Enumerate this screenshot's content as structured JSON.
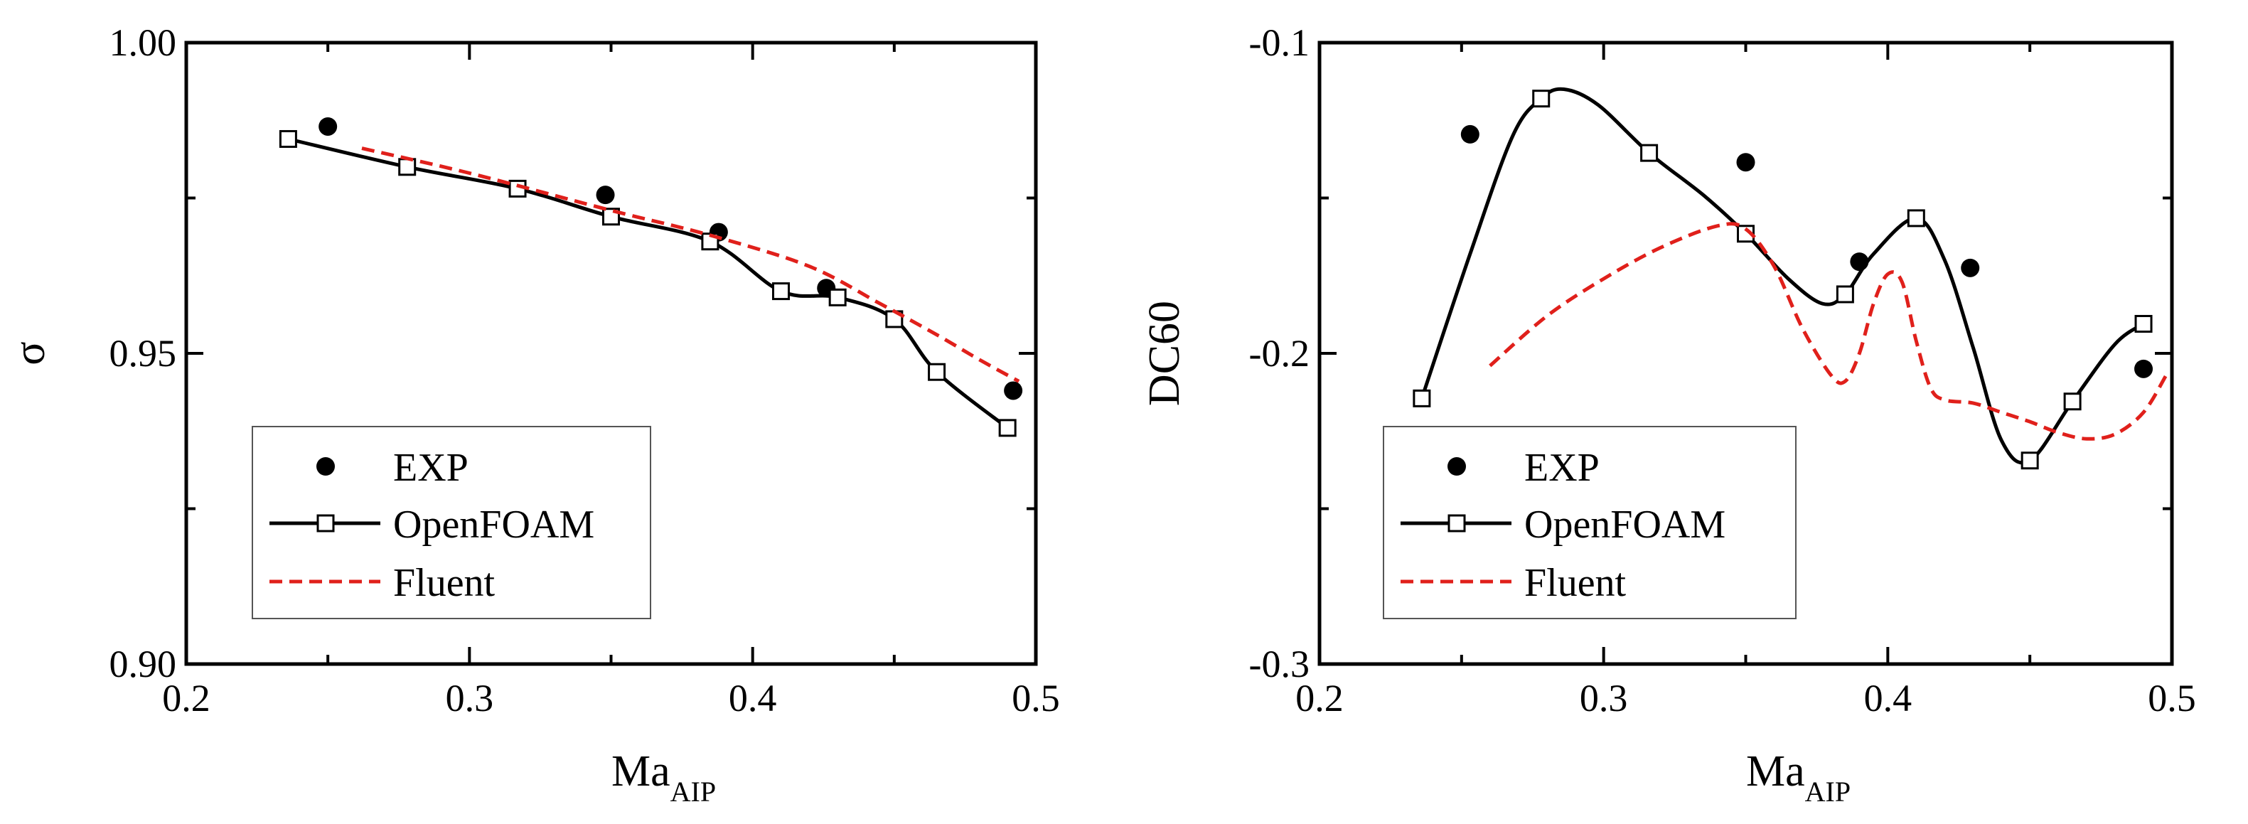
{
  "colors": {
    "exp": "#000000",
    "openfoam": "#000000",
    "fluent": "#e0201b",
    "axis": "#000000"
  },
  "chart_data": [
    {
      "type": "line",
      "title": "",
      "xlabel": "Ma",
      "xlabel_sub": "AIP",
      "ylabel": "σ",
      "xlim": [
        0.2,
        0.5
      ],
      "ylim": [
        0.9,
        1.0
      ],
      "xticks": [
        "0.2",
        "0.3",
        "0.4",
        "0.5"
      ],
      "yticks": [
        "0.90",
        "0.95",
        "1.00"
      ],
      "xtick_values": [
        0.2,
        0.3,
        0.4,
        0.5
      ],
      "ytick_values": [
        0.9,
        0.95,
        1.0
      ],
      "legend_position": "bottom-left",
      "series": [
        {
          "name": "EXP",
          "style": "marker",
          "x": [
            0.25,
            0.348,
            0.388,
            0.426,
            0.492
          ],
          "y": [
            0.9865,
            0.9755,
            0.9695,
            0.9605,
            0.944
          ]
        },
        {
          "name": "OpenFOAM",
          "style": "line-square",
          "x": [
            0.236,
            0.278,
            0.317,
            0.35,
            0.385,
            0.41,
            0.43,
            0.45,
            0.465,
            0.49
          ],
          "y": [
            0.9845,
            0.98,
            0.9765,
            0.972,
            0.968,
            0.96,
            0.959,
            0.9555,
            0.947,
            0.938
          ]
        },
        {
          "name": "Fluent",
          "style": "dashed",
          "x": [
            0.262,
            0.3,
            0.35,
            0.385,
            0.42,
            0.445,
            0.465,
            0.48,
            0.494
          ],
          "y": [
            0.983,
            0.979,
            0.973,
            0.969,
            0.964,
            0.958,
            0.953,
            0.949,
            0.9455
          ]
        }
      ]
    },
    {
      "type": "line",
      "title": "",
      "xlabel": "Ma",
      "xlabel_sub": "AIP",
      "ylabel": "DC60",
      "xlim": [
        0.2,
        0.5
      ],
      "ylim": [
        -0.3,
        -0.1
      ],
      "xticks": [
        "0.2",
        "0.3",
        "0.4",
        "0.5"
      ],
      "yticks": [
        "-0.3",
        "-0.2",
        "-0.1"
      ],
      "xtick_values": [
        0.2,
        0.3,
        0.4,
        0.5
      ],
      "ytick_values": [
        -0.3,
        -0.2,
        -0.1
      ],
      "legend_position": "bottom-left",
      "series": [
        {
          "name": "EXP",
          "style": "marker",
          "x": [
            0.253,
            0.35,
            0.39,
            0.429,
            0.49
          ],
          "y": [
            -0.1295,
            -0.1385,
            -0.1705,
            -0.1725,
            -0.205
          ]
        },
        {
          "name": "OpenFOAM",
          "style": "line-square",
          "x": [
            0.236,
            0.253,
            0.268,
            0.278,
            0.286,
            0.298,
            0.316,
            0.335,
            0.35,
            0.365,
            0.377,
            0.385,
            0.395,
            0.41,
            0.42,
            0.43,
            0.44,
            0.45,
            0.465,
            0.48,
            0.49
          ],
          "y": [
            -0.2145,
            -0.168,
            -0.13,
            -0.118,
            -0.115,
            -0.12,
            -0.1355,
            -0.149,
            -0.1615,
            -0.176,
            -0.184,
            -0.181,
            -0.168,
            -0.1565,
            -0.17,
            -0.198,
            -0.228,
            -0.2345,
            -0.2155,
            -0.197,
            -0.1905
          ]
        },
        {
          "name": "Fluent",
          "style": "dashed",
          "x": [
            0.26,
            0.28,
            0.3,
            0.32,
            0.34,
            0.35,
            0.36,
            0.37,
            0.38,
            0.385,
            0.39,
            0.395,
            0.4,
            0.405,
            0.41,
            0.415,
            0.42,
            0.43,
            0.44,
            0.45,
            0.46,
            0.47,
            0.48,
            0.49,
            0.498
          ],
          "y": [
            -0.204,
            -0.188,
            -0.176,
            -0.166,
            -0.159,
            -0.16,
            -0.172,
            -0.192,
            -0.207,
            -0.209,
            -0.2,
            -0.184,
            -0.1745,
            -0.177,
            -0.196,
            -0.211,
            -0.215,
            -0.216,
            -0.219,
            -0.222,
            -0.2255,
            -0.2275,
            -0.226,
            -0.219,
            -0.207
          ]
        }
      ]
    }
  ]
}
